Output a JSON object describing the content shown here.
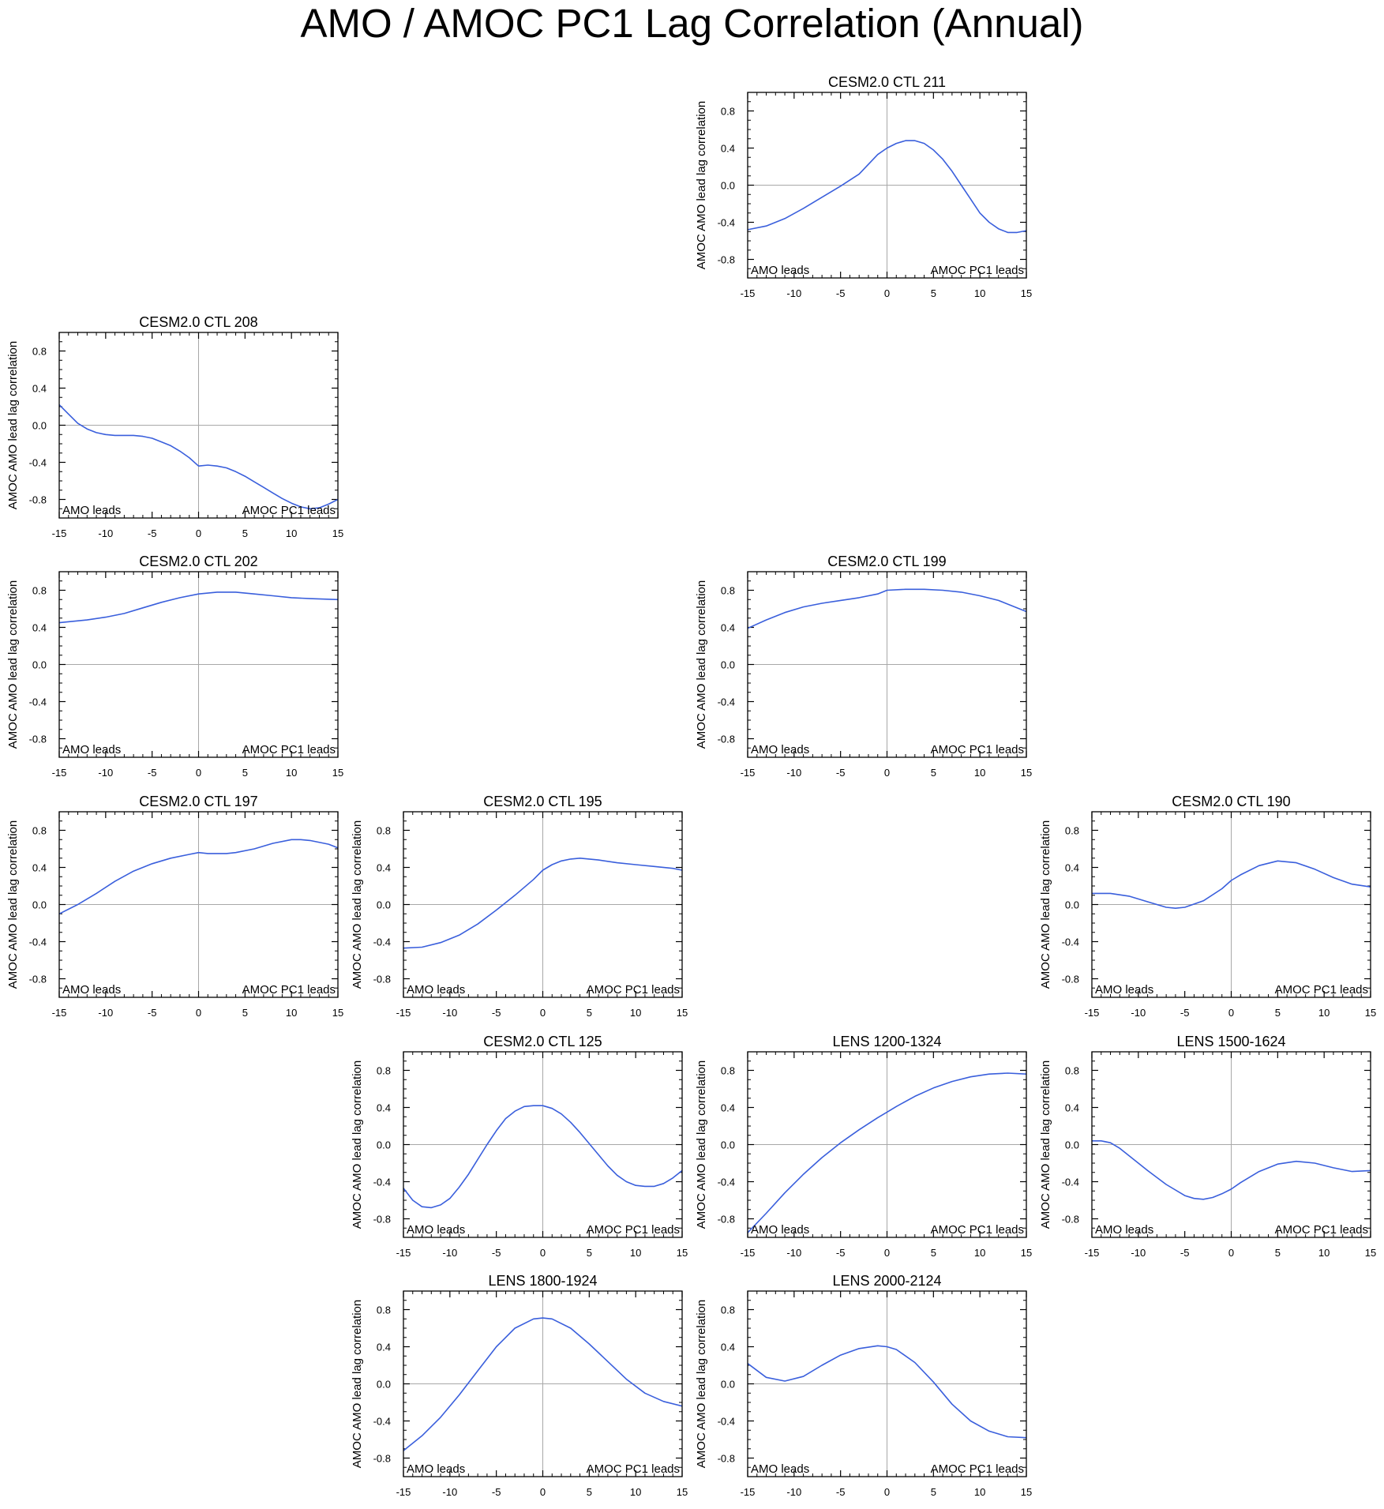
{
  "figure": {
    "title": "AMO / AMOC PC1 Lag Correlation (Annual)",
    "line_color": "#3a5fdc"
  },
  "chart_data": [
    {
      "type": "line",
      "title": "CESM2.0 CTL 211",
      "ylabel": "AMOC AMO lead lag correlation",
      "xlim": [
        -15,
        15
      ],
      "ylim": [
        -1.0,
        1.0
      ],
      "xticks": [
        "-15",
        "-10",
        "-5",
        "0",
        "5",
        "10",
        "15"
      ],
      "yticks": [
        "-0.8",
        "-0.4",
        "0.0",
        "0.4",
        "0.8"
      ],
      "left_note": "AMO leads",
      "right_note": "AMOC PC1 leads",
      "x": [
        -15,
        -13,
        -11,
        -9,
        -7,
        -5,
        -3,
        -1,
        0,
        1,
        2,
        3,
        4,
        5,
        6,
        7,
        8,
        9,
        10,
        11,
        12,
        13,
        14,
        15
      ],
      "y": [
        -0.48,
        -0.44,
        -0.36,
        -0.25,
        -0.13,
        -0.01,
        0.12,
        0.33,
        0.4,
        0.45,
        0.48,
        0.48,
        0.45,
        0.38,
        0.28,
        0.15,
        0.0,
        -0.15,
        -0.3,
        -0.4,
        -0.47,
        -0.51,
        -0.51,
        -0.49
      ]
    },
    {
      "type": "line",
      "title": "CESM2.0 CTL 208",
      "ylabel": "AMOC AMO lead lag correlation",
      "xlim": [
        -15,
        15
      ],
      "ylim": [
        -1.0,
        1.0
      ],
      "xticks": [
        "-15",
        "-10",
        "-5",
        "0",
        "5",
        "10",
        "15"
      ],
      "yticks": [
        "-0.8",
        "-0.4",
        "0.0",
        "0.4",
        "0.8"
      ],
      "left_note": "AMO leads",
      "right_note": "AMOC PC1 leads",
      "x": [
        -15,
        -14,
        -13,
        -12,
        -11,
        -10,
        -9,
        -8,
        -7,
        -6,
        -5,
        -4,
        -3,
        -2,
        -1,
        0,
        1,
        2,
        3,
        4,
        5,
        6,
        7,
        8,
        9,
        10,
        11,
        12,
        13,
        14,
        15
      ],
      "y": [
        0.22,
        0.12,
        0.02,
        -0.04,
        -0.08,
        -0.1,
        -0.11,
        -0.11,
        -0.11,
        -0.12,
        -0.14,
        -0.18,
        -0.22,
        -0.28,
        -0.35,
        -0.44,
        -0.43,
        -0.44,
        -0.46,
        -0.5,
        -0.55,
        -0.61,
        -0.67,
        -0.73,
        -0.79,
        -0.84,
        -0.88,
        -0.9,
        -0.89,
        -0.85,
        -0.8
      ]
    },
    {
      "type": "line",
      "title": "CESM2.0 CTL 202",
      "ylabel": "AMOC AMO lead lag correlation",
      "xlim": [
        -15,
        15
      ],
      "ylim": [
        -1.0,
        1.0
      ],
      "xticks": [
        "-15",
        "-10",
        "-5",
        "0",
        "5",
        "10",
        "15"
      ],
      "yticks": [
        "-0.8",
        "-0.4",
        "0.0",
        "0.4",
        "0.8"
      ],
      "left_note": "AMO leads",
      "right_note": "AMOC PC1 leads",
      "x": [
        -15,
        -12,
        -10,
        -8,
        -6,
        -4,
        -2,
        0,
        2,
        4,
        6,
        8,
        10,
        12,
        15
      ],
      "y": [
        0.45,
        0.48,
        0.51,
        0.55,
        0.61,
        0.67,
        0.72,
        0.76,
        0.78,
        0.78,
        0.76,
        0.74,
        0.72,
        0.71,
        0.7
      ]
    },
    {
      "type": "line",
      "title": "CESM2.0 CTL 199",
      "ylabel": "AMOC AMO lead lag correlation",
      "xlim": [
        -15,
        15
      ],
      "ylim": [
        -1.0,
        1.0
      ],
      "xticks": [
        "-15",
        "-10",
        "-5",
        "0",
        "5",
        "10",
        "15"
      ],
      "yticks": [
        "-0.8",
        "-0.4",
        "0.0",
        "0.4",
        "0.8"
      ],
      "left_note": "AMO leads",
      "right_note": "AMOC PC1 leads",
      "x": [
        -15,
        -13,
        -11,
        -9,
        -7,
        -5,
        -3,
        -1,
        0,
        2,
        4,
        6,
        8,
        10,
        12,
        15
      ],
      "y": [
        0.39,
        0.48,
        0.56,
        0.62,
        0.66,
        0.69,
        0.72,
        0.76,
        0.8,
        0.81,
        0.81,
        0.8,
        0.78,
        0.74,
        0.69,
        0.57
      ]
    },
    {
      "type": "line",
      "title": "CESM2.0 CTL 197",
      "ylabel": "AMOC AMO lead lag correlation",
      "xlim": [
        -15,
        15
      ],
      "ylim": [
        -1.0,
        1.0
      ],
      "xticks": [
        "-15",
        "-10",
        "-5",
        "0",
        "5",
        "10",
        "15"
      ],
      "yticks": [
        "-0.8",
        "-0.4",
        "0.0",
        "0.4",
        "0.8"
      ],
      "left_note": "AMO leads",
      "right_note": "AMOC PC1 leads",
      "x": [
        -15,
        -13,
        -11,
        -9,
        -7,
        -5,
        -3,
        -1,
        0,
        1,
        2,
        3,
        4,
        6,
        8,
        10,
        11,
        12,
        14,
        15
      ],
      "y": [
        -0.1,
        0.0,
        0.12,
        0.25,
        0.36,
        0.44,
        0.5,
        0.54,
        0.56,
        0.55,
        0.55,
        0.55,
        0.56,
        0.6,
        0.66,
        0.7,
        0.7,
        0.69,
        0.65,
        0.61
      ]
    },
    {
      "type": "line",
      "title": "CESM2.0 CTL 195",
      "ylabel": "AMOC AMO lead lag correlation",
      "xlim": [
        -15,
        15
      ],
      "ylim": [
        -1.0,
        1.0
      ],
      "xticks": [
        "-15",
        "-10",
        "-5",
        "0",
        "5",
        "10",
        "15"
      ],
      "yticks": [
        "-0.8",
        "-0.4",
        "0.0",
        "0.4",
        "0.8"
      ],
      "left_note": "AMO leads",
      "right_note": "AMOC PC1 leads",
      "x": [
        -15,
        -13,
        -11,
        -9,
        -7,
        -5,
        -3,
        -1,
        0,
        1,
        2,
        3,
        4,
        5,
        6,
        8,
        10,
        12,
        14,
        15
      ],
      "y": [
        -0.47,
        -0.46,
        -0.41,
        -0.33,
        -0.21,
        -0.06,
        0.1,
        0.27,
        0.37,
        0.43,
        0.47,
        0.49,
        0.5,
        0.49,
        0.48,
        0.45,
        0.43,
        0.41,
        0.39,
        0.37
      ]
    },
    {
      "type": "line",
      "title": "CESM2.0 CTL 190",
      "ylabel": "AMOC AMO lead lag correlation",
      "xlim": [
        -15,
        15
      ],
      "ylim": [
        -1.0,
        1.0
      ],
      "xticks": [
        "-15",
        "-10",
        "-5",
        "0",
        "5",
        "10",
        "15"
      ],
      "yticks": [
        "-0.8",
        "-0.4",
        "0.0",
        "0.4",
        "0.8"
      ],
      "left_note": "AMO leads",
      "right_note": "AMOC PC1 leads",
      "x": [
        -15,
        -13,
        -11,
        -9,
        -7,
        -6,
        -5,
        -3,
        -1,
        0,
        1,
        3,
        5,
        7,
        9,
        11,
        13,
        15
      ],
      "y": [
        0.12,
        0.12,
        0.09,
        0.03,
        -0.03,
        -0.04,
        -0.03,
        0.04,
        0.17,
        0.26,
        0.32,
        0.42,
        0.47,
        0.45,
        0.38,
        0.29,
        0.22,
        0.19
      ]
    },
    {
      "type": "line",
      "title": "CESM2.0 CTL 125",
      "ylabel": "AMOC AMO lead lag correlation",
      "xlim": [
        -15,
        15
      ],
      "ylim": [
        -1.0,
        1.0
      ],
      "xticks": [
        "-15",
        "-10",
        "-5",
        "0",
        "5",
        "10",
        "15"
      ],
      "yticks": [
        "-0.8",
        "-0.4",
        "0.0",
        "0.4",
        "0.8"
      ],
      "left_note": "AMO leads",
      "right_note": "AMOC PC1 leads",
      "x": [
        -15,
        -14,
        -13,
        -12,
        -11,
        -10,
        -9,
        -8,
        -7,
        -6,
        -5,
        -4,
        -3,
        -2,
        -1,
        0,
        1,
        2,
        3,
        4,
        5,
        6,
        7,
        8,
        9,
        10,
        11,
        12,
        13,
        14,
        15
      ],
      "y": [
        -0.47,
        -0.6,
        -0.67,
        -0.68,
        -0.65,
        -0.58,
        -0.46,
        -0.32,
        -0.16,
        0.0,
        0.15,
        0.28,
        0.36,
        0.41,
        0.42,
        0.42,
        0.39,
        0.33,
        0.24,
        0.13,
        0.01,
        -0.11,
        -0.23,
        -0.33,
        -0.4,
        -0.44,
        -0.45,
        -0.45,
        -0.42,
        -0.36,
        -0.28
      ]
    },
    {
      "type": "line",
      "title": "LENS 1200-1324",
      "ylabel": "AMOC AMO lead lag correlation",
      "xlim": [
        -15,
        15
      ],
      "ylim": [
        -1.0,
        1.0
      ],
      "xticks": [
        "-15",
        "-10",
        "-5",
        "0",
        "5",
        "10",
        "15"
      ],
      "yticks": [
        "-0.8",
        "-0.4",
        "0.0",
        "0.4",
        "0.8"
      ],
      "left_note": "AMO leads",
      "right_note": "AMOC PC1 leads",
      "x": [
        -15,
        -13,
        -11,
        -9,
        -7,
        -5,
        -3,
        -1,
        0,
        1,
        3,
        5,
        7,
        9,
        11,
        13,
        15
      ],
      "y": [
        -0.95,
        -0.74,
        -0.52,
        -0.32,
        -0.14,
        0.02,
        0.16,
        0.29,
        0.35,
        0.41,
        0.52,
        0.61,
        0.68,
        0.73,
        0.76,
        0.77,
        0.76
      ]
    },
    {
      "type": "line",
      "title": "LENS 1500-1624",
      "ylabel": "AMOC AMO lead lag correlation",
      "xlim": [
        -15,
        15
      ],
      "ylim": [
        -1.0,
        1.0
      ],
      "xticks": [
        "-15",
        "-10",
        "-5",
        "0",
        "5",
        "10",
        "15"
      ],
      "yticks": [
        "-0.8",
        "-0.4",
        "0.0",
        "0.4",
        "0.8"
      ],
      "left_note": "AMO leads",
      "right_note": "AMOC PC1 leads",
      "x": [
        -15,
        -14,
        -13,
        -12,
        -11,
        -9,
        -7,
        -5,
        -4,
        -3,
        -2,
        -1,
        0,
        1,
        3,
        5,
        7,
        9,
        11,
        13,
        15
      ],
      "y": [
        0.04,
        0.04,
        0.02,
        -0.04,
        -0.12,
        -0.28,
        -0.43,
        -0.55,
        -0.58,
        -0.59,
        -0.57,
        -0.53,
        -0.48,
        -0.41,
        -0.29,
        -0.21,
        -0.18,
        -0.2,
        -0.25,
        -0.29,
        -0.28
      ]
    },
    {
      "type": "line",
      "title": "LENS 1800-1924",
      "ylabel": "AMOC AMO lead lag correlation",
      "xlim": [
        -15,
        15
      ],
      "ylim": [
        -1.0,
        1.0
      ],
      "xticks": [
        "-15",
        "-10",
        "-5",
        "0",
        "5",
        "10",
        "15"
      ],
      "yticks": [
        "-0.8",
        "-0.4",
        "0.0",
        "0.4",
        "0.8"
      ],
      "left_note": "AMO leads",
      "right_note": "AMOC PC1 leads",
      "x": [
        -15,
        -13,
        -11,
        -9,
        -7,
        -5,
        -3,
        -1,
        0,
        1,
        3,
        5,
        7,
        9,
        11,
        13,
        15
      ],
      "y": [
        -0.72,
        -0.56,
        -0.36,
        -0.12,
        0.14,
        0.4,
        0.6,
        0.7,
        0.71,
        0.7,
        0.6,
        0.43,
        0.24,
        0.05,
        -0.1,
        -0.19,
        -0.24
      ]
    },
    {
      "type": "line",
      "title": "LENS 2000-2124",
      "ylabel": "AMOC AMO lead lag correlation",
      "xlim": [
        -15,
        15
      ],
      "ylim": [
        -1.0,
        1.0
      ],
      "xticks": [
        "-15",
        "-10",
        "-5",
        "0",
        "5",
        "10",
        "15"
      ],
      "yticks": [
        "-0.8",
        "-0.4",
        "0.0",
        "0.4",
        "0.8"
      ],
      "left_note": "AMO leads",
      "right_note": "AMOC PC1 leads",
      "x": [
        -15,
        -13,
        -11,
        -9,
        -7,
        -5,
        -3,
        -1,
        0,
        1,
        3,
        5,
        7,
        9,
        11,
        13,
        15
      ],
      "y": [
        0.22,
        0.07,
        0.03,
        0.08,
        0.2,
        0.31,
        0.38,
        0.41,
        0.4,
        0.37,
        0.23,
        0.02,
        -0.22,
        -0.4,
        -0.51,
        -0.57,
        -0.58
      ]
    }
  ]
}
